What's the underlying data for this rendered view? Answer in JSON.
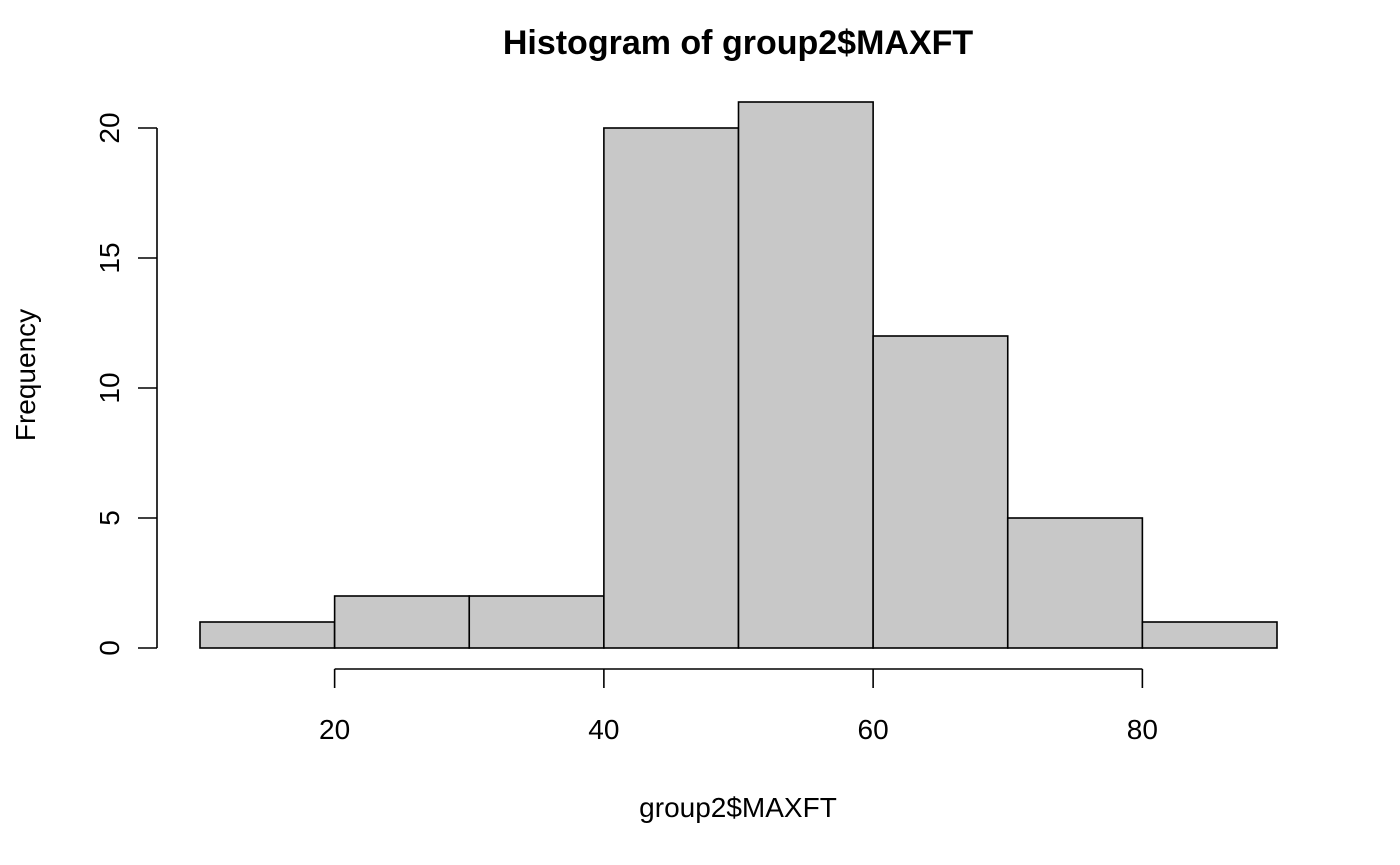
{
  "chart_data": {
    "type": "bar",
    "title": "Histogram of group2$MAXFT",
    "xlabel": "group2$MAXFT",
    "ylabel": "Frequency",
    "bins": [
      {
        "start": 10,
        "end": 20,
        "count": 1
      },
      {
        "start": 20,
        "end": 30,
        "count": 2
      },
      {
        "start": 30,
        "end": 40,
        "count": 2
      },
      {
        "start": 40,
        "end": 50,
        "count": 20
      },
      {
        "start": 50,
        "end": 60,
        "count": 21
      },
      {
        "start": 60,
        "end": 70,
        "count": 12
      },
      {
        "start": 70,
        "end": 80,
        "count": 5
      },
      {
        "start": 80,
        "end": 90,
        "count": 1
      }
    ],
    "x_ticks": [
      20,
      40,
      60,
      80
    ],
    "y_ticks": [
      0,
      5,
      10,
      15,
      20
    ],
    "xlim": [
      10,
      90
    ],
    "ylim": [
      0,
      21
    ],
    "grid": false,
    "bar_fill": "#c8c8c8",
    "bar_stroke": "#000000"
  }
}
